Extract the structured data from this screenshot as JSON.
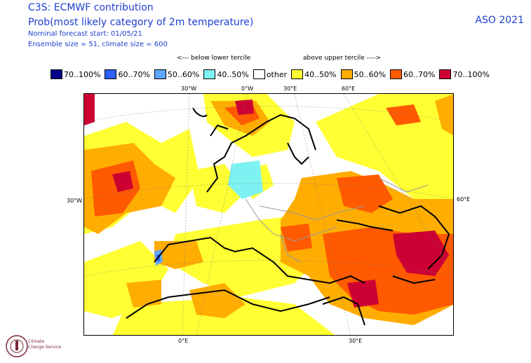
{
  "header": {
    "title": "C3S: ECMWF contribution",
    "subtitle": "Prob(most likely category of 2m temperature)",
    "forecast_start": "Nominal forecast start: 01/05/21",
    "ensemble": "Ensemble size = 51, climate size = 600",
    "period": "ASO 2021"
  },
  "tercile_labels": {
    "below": "<--- below lower tercile",
    "above": "above upper tercile ---->"
  },
  "legend": [
    {
      "label": "70..100%",
      "color": "#00008b"
    },
    {
      "label": "60..70%",
      "color": "#2e5fff"
    },
    {
      "label": "50..60%",
      "color": "#5fa8ff"
    },
    {
      "label": "40..50%",
      "color": "#7ef2f2"
    },
    {
      "label": "other",
      "color": "#ffffff"
    },
    {
      "label": "40..50%",
      "color": "#ffff33"
    },
    {
      "label": "50..60%",
      "color": "#ffad00"
    },
    {
      "label": "60..70%",
      "color": "#ff5a00"
    },
    {
      "label": "70..100%",
      "color": "#cc0033"
    }
  ],
  "map_labels": {
    "top": [
      "30°W",
      "0°W",
      "30°E",
      "60°E"
    ],
    "left": "30°W",
    "right": "60°E",
    "bottom": [
      "0°E",
      "30°E"
    ]
  },
  "logo": {
    "line1": "Climate",
    "line2": "Change Service"
  }
}
